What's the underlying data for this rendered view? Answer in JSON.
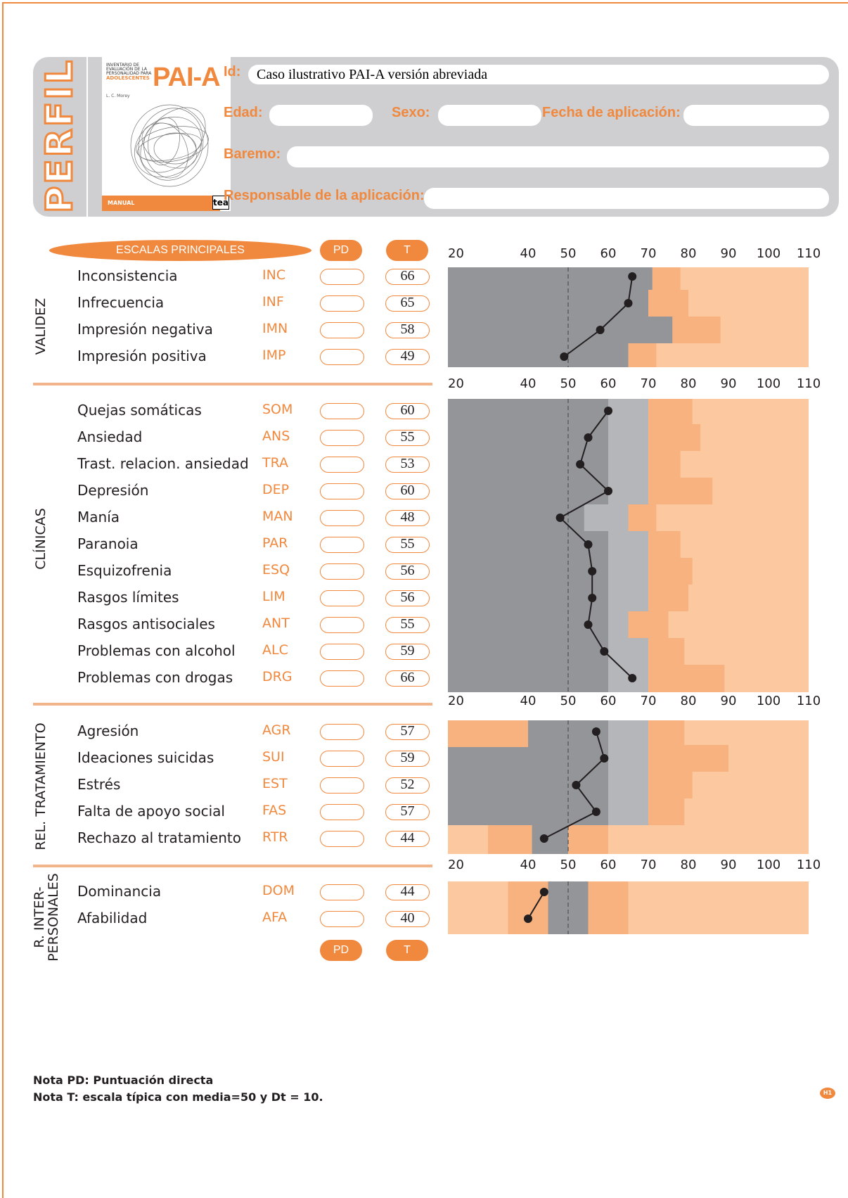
{
  "header": {
    "perfil": "PERFIL",
    "cover": {
      "small_title": "INVENTARIO DE EVALUACIÓN DE LA PERSONALIDAD PARA",
      "small_title2": "ADOLESCENTES",
      "title": "PAI-A",
      "author": "L. C. Morey",
      "manual": "MANUAL",
      "publisher": "tea"
    },
    "id_label": "Id:",
    "id_value": "Caso ilustrativo PAI-A versión abreviada",
    "edad_label": "Edad:",
    "sexo_label": "Sexo:",
    "fecha_label": "Fecha de aplicación:",
    "baremo_label": "Baremo:",
    "responsable_label": "Responsable de la aplicación:"
  },
  "columns": {
    "escalas": "ESCALAS PRINCIPALES",
    "pd": "PD",
    "t": "T"
  },
  "sections": [
    {
      "title": "VALIDEZ",
      "rows": [
        {
          "name": "Inconsistencia",
          "abbr": "INC",
          "t": "66"
        },
        {
          "name": "Infrecuencia",
          "abbr": "INF",
          "t": "65"
        },
        {
          "name": "Impresión negativa",
          "abbr": "IMN",
          "t": "58"
        },
        {
          "name": "Impresión positiva",
          "abbr": "IMP",
          "t": "49"
        }
      ]
    },
    {
      "title": "CLÍNICAS",
      "rows": [
        {
          "name": "Quejas somáticas",
          "abbr": "SOM",
          "t": "60"
        },
        {
          "name": "Ansiedad",
          "abbr": "ANS",
          "t": "55"
        },
        {
          "name": "Trast. relacion. ansiedad",
          "abbr": "TRA",
          "t": "53"
        },
        {
          "name": "Depresión",
          "abbr": "DEP",
          "t": "60"
        },
        {
          "name": "Manía",
          "abbr": "MAN",
          "t": "48"
        },
        {
          "name": "Paranoia",
          "abbr": "PAR",
          "t": "55"
        },
        {
          "name": "Esquizofrenia",
          "abbr": "ESQ",
          "t": "56"
        },
        {
          "name": "Rasgos límites",
          "abbr": "LIM",
          "t": "56"
        },
        {
          "name": "Rasgos antisociales",
          "abbr": "ANT",
          "t": "55"
        },
        {
          "name": "Problemas con alcohol",
          "abbr": "ALC",
          "t": "59"
        },
        {
          "name": "Problemas con drogas",
          "abbr": "DRG",
          "t": "66"
        }
      ]
    },
    {
      "title": "REL. TRATAMIENTO",
      "rows": [
        {
          "name": "Agresión",
          "abbr": "AGR",
          "t": "57"
        },
        {
          "name": "Ideaciones suicidas",
          "abbr": "SUI",
          "t": "59"
        },
        {
          "name": "Estrés",
          "abbr": "EST",
          "t": "52"
        },
        {
          "name": "Falta de apoyo social",
          "abbr": "FAS",
          "t": "57"
        },
        {
          "name": "Rechazo al tratamiento",
          "abbr": "RTR",
          "t": "44"
        }
      ]
    },
    {
      "title": "R. INTER-PERSONALES",
      "title_line1": "R. INTER-",
      "title_line2": "PERSONALES",
      "rows": [
        {
          "name": "Dominancia",
          "abbr": "DOM",
          "t": "44"
        },
        {
          "name": "Afabilidad",
          "abbr": "AFA",
          "t": "40"
        }
      ]
    }
  ],
  "chart_data": {
    "type": "line",
    "x_ticks": [
      20,
      40,
      50,
      60,
      70,
      80,
      90,
      100,
      110
    ],
    "xlim": [
      20,
      110
    ],
    "reference_line": 50,
    "panels": [
      {
        "section": "VALIDEZ",
        "categories": [
          "INC",
          "INF",
          "IMN",
          "IMP"
        ],
        "values": [
          66,
          65,
          58,
          49
        ]
      },
      {
        "section": "CLÍNICAS",
        "categories": [
          "SOM",
          "ANS",
          "TRA",
          "DEP",
          "MAN",
          "PAR",
          "ESQ",
          "LIM",
          "ANT",
          "ALC",
          "DRG"
        ],
        "values": [
          60,
          55,
          53,
          60,
          48,
          55,
          56,
          56,
          55,
          59,
          66
        ]
      },
      {
        "section": "REL. TRATAMIENTO",
        "categories": [
          "AGR",
          "SUI",
          "EST",
          "FAS",
          "RTR"
        ],
        "values": [
          57,
          59,
          52,
          57,
          44
        ]
      },
      {
        "section": "R. INTER-PERSONALES",
        "categories": [
          "DOM",
          "AFA"
        ],
        "values": [
          44,
          40
        ]
      }
    ],
    "colors": {
      "dark_gray": "#939598",
      "light_gray": "#b5b6b9",
      "orange": "#f8b27f",
      "light_orange": "#fcc8a0",
      "points": "#231f20",
      "accent": "#f0883e"
    }
  },
  "notes": {
    "pd": "Nota PD: Puntuación directa",
    "t": "Nota T:  escala típica con media=50 y Dt = 10."
  },
  "badge": "H1"
}
